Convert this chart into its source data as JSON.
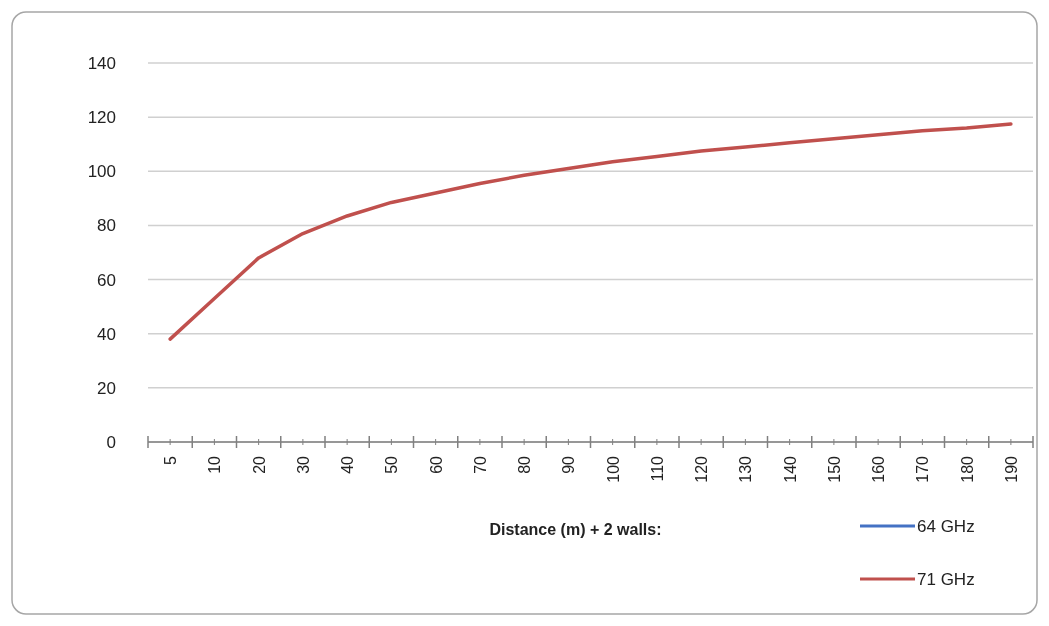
{
  "chart_data": {
    "type": "line",
    "xlabel": "Distance (m) + 2 walls:",
    "categories": [
      "5",
      "10",
      "20",
      "30",
      "40",
      "50",
      "60",
      "70",
      "80",
      "90",
      "100",
      "110",
      "120",
      "130",
      "140",
      "150",
      "160",
      "170",
      "180",
      "190"
    ],
    "series": [
      {
        "name": "64 GHz",
        "color": "#4472c4",
        "values": [
          null,
          null,
          null,
          null,
          null,
          null,
          null,
          null,
          null,
          null,
          null,
          null,
          null,
          null,
          null,
          null,
          null,
          null,
          null,
          null
        ]
      },
      {
        "name": "71 GHz",
        "color": "#c0504d",
        "values": [
          38,
          53,
          68,
          77,
          83.5,
          88.5,
          92,
          95.5,
          98.5,
          101,
          103.5,
          105.5,
          107.5,
          109,
          110.5,
          112,
          113.5,
          115,
          116,
          117.5
        ]
      }
    ],
    "ylim": [
      0,
      140
    ],
    "yticks": [
      0,
      20,
      40,
      60,
      80,
      100,
      120,
      140
    ],
    "grid": "y",
    "legend": "bottom right",
    "marker": "none",
    "line_style": "solid"
  }
}
